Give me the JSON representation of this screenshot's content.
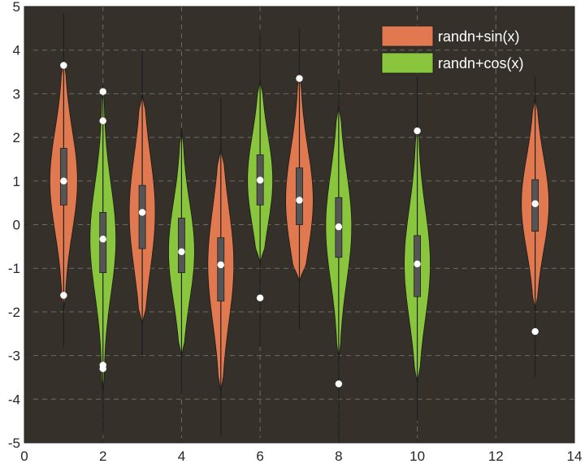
{
  "chart_data": {
    "type": "violin",
    "title": "",
    "xlabel": "",
    "ylabel": "",
    "xlim": [
      0,
      14
    ],
    "ylim": [
      -5,
      5
    ],
    "xticks": [
      "0",
      "2",
      "4",
      "6",
      "8",
      "10",
      "12",
      "14"
    ],
    "yticks": [
      "-5",
      "-4",
      "-3",
      "-2",
      "-1",
      "0",
      "1",
      "2",
      "3",
      "4",
      "5"
    ],
    "grid": true,
    "legend_position": "top-right",
    "background_color": "#35302a",
    "series": [
      {
        "name": "randn+sin(x)",
        "color": "#e0794f",
        "violins": [
          {
            "x": 1,
            "whisker": [
              -2.8,
              4.85
            ],
            "violin_range": [
              -2.0,
              3.8
            ],
            "q1": 0.45,
            "median": 1.0,
            "q3": 1.75,
            "max_width": 0.35,
            "outliers": [
              3.65,
              -1.62
            ]
          },
          {
            "x": 3,
            "whisker": [
              -3.05,
              4.0
            ],
            "violin_range": [
              -2.3,
              3.0
            ],
            "q1": -0.55,
            "median": 0.28,
            "q3": 0.9,
            "max_width": 0.33,
            "outliers": []
          },
          {
            "x": 5,
            "whisker": [
              -4.85,
              2.9
            ],
            "violin_range": [
              -3.85,
              1.75
            ],
            "q1": -1.75,
            "median": -0.92,
            "q3": -0.3,
            "max_width": 0.33,
            "outliers": []
          },
          {
            "x": 7,
            "whisker": [
              -2.4,
              4.5
            ],
            "violin_range": [
              -1.3,
              3.5
            ],
            "q1": 0.0,
            "median": 0.56,
            "q3": 1.3,
            "max_width": 0.35,
            "outliers": [
              3.35
            ]
          },
          {
            "x": 13,
            "whisker": [
              -3.5,
              3.4
            ],
            "violin_range": [
              -2.0,
              2.95
            ],
            "q1": -0.15,
            "median": 0.48,
            "q3": 1.03,
            "max_width": 0.35,
            "outliers": [
              -2.45
            ]
          }
        ]
      },
      {
        "name": "randn+cos(x)",
        "color": "#8ac53e",
        "violins": [
          {
            "x": 2,
            "whisker": [
              -4.75,
              2.95
            ],
            "violin_range": [
              -3.9,
              3.2
            ],
            "q1": -1.1,
            "median": -0.33,
            "q3": 0.28,
            "max_width": 0.33,
            "outliers": [
              3.05,
              2.38,
              -3.22,
              -3.3
            ]
          },
          {
            "x": 4,
            "whisker": [
              -3.9,
              2.2
            ],
            "violin_range": [
              -3.05,
              2.2
            ],
            "q1": -1.1,
            "median": -0.62,
            "q3": 0.15,
            "max_width": 0.33,
            "outliers": []
          },
          {
            "x": 6,
            "whisker": [
              -2.8,
              4.4
            ],
            "violin_range": [
              -0.9,
              3.35
            ],
            "q1": 0.45,
            "median": 1.02,
            "q3": 1.6,
            "max_width": 0.32,
            "outliers": [
              -1.68
            ]
          },
          {
            "x": 8,
            "whisker": [
              -5.0,
              3.35
            ],
            "violin_range": [
              -3.1,
              2.75
            ],
            "q1": -0.75,
            "median": -0.05,
            "q3": 0.62,
            "max_width": 0.33,
            "outliers": [
              -3.65
            ]
          },
          {
            "x": 10,
            "whisker": [
              -4.5,
              3.4
            ],
            "violin_range": [
              -3.65,
              2.3
            ],
            "q1": -1.65,
            "median": -0.9,
            "q3": -0.25,
            "max_width": 0.33,
            "outliers": [
              2.15
            ]
          }
        ]
      }
    ]
  }
}
